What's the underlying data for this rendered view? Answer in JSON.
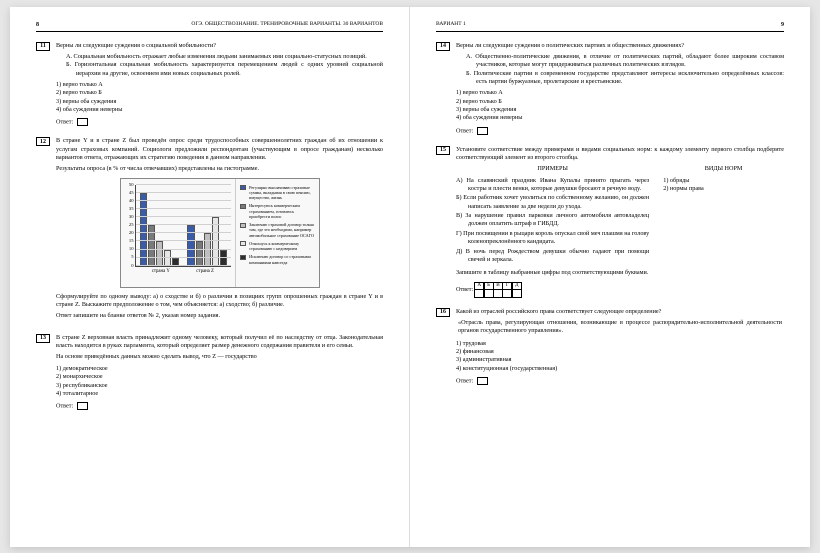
{
  "left": {
    "page_num": "8",
    "header_title": "ОГЭ. ОБЩЕСТВОЗНАНИЕ. ТРЕНИРОВОЧНЫЕ ВАРИАНТЫ. 30 ВАРИАНТОВ",
    "q11": {
      "num": "11",
      "stem": "Верны ли следующие суждения о социальной мобильности?",
      "A": "А. Социальная мобильность отражает любые изменения людьми занимаемых ими социально-статусных позиций.",
      "B": "Б. Горизонтальная социальная мобильность характеризуется перемещением людей с одних уровней социальной иерархии на другие, освоением ими новых социальных ролей.",
      "opts": [
        "1) верно только А",
        "2) верно только Б",
        "3) верны оба суждения",
        "4) оба суждения неверны"
      ],
      "answer_label": "Ответ:"
    },
    "q12": {
      "num": "12",
      "p1": "В стране Y и в стране Z был проведён опрос среди трудоспособных совершеннолетних граждан об их отношении к услугам страховых компаний. Социологи предложили респондентам (участвующим в опросе гражданам) несколько вариантов ответа, отражающих их стратегию поведения в данном направлении.",
      "p2": "Результаты опроса (в % от числа отвечавших) представлены на гистограмме.",
      "chart": {
        "ymax": 50,
        "ystep": 5,
        "categories": [
          "страна Y",
          "страна Z"
        ],
        "series": [
          {
            "label": "Регулярно выплачиваю страховые суммы, вкладывая в свою пенсию, имущество, жизнь",
            "color": "#3a5ca8",
            "vals": [
              45,
              25
            ]
          },
          {
            "label": "Интересуюсь коммерческим страхованием, готовлюсь приобрести полис",
            "color": "#7a7a7a",
            "vals": [
              25,
              15
            ]
          },
          {
            "label": "Заключаю страховой договор только там, где это необходимо, например автомобильное страхование ОСАГО",
            "color": "#bfbfbf",
            "vals": [
              15,
              20
            ]
          },
          {
            "label": "Отношусь к коммерческому страхованию с недоверием",
            "color": "#e6e6e6",
            "vals": [
              10,
              30
            ]
          },
          {
            "label": "Исключаю договор со страховыми компаниями навсегда",
            "color": "#2d2d2d",
            "vals": [
              5,
              10
            ]
          }
        ]
      },
      "p3": "Сформулируйте по одному выводу: а) о сходстве и б) о различии в позициях групп опрошенных граждан в стране Y и в стране Z. Выскажите предположение о том, чем объясняется: а) сходство; б) различие.",
      "p4": "Ответ запишите на бланке ответов № 2, указав номер задания."
    },
    "q13": {
      "num": "13",
      "stem": "В стране Z верховная власть принадлежит одному человеку, который получил её по наследству от отца. Законодательная власть находится в руках парламента, который определяет размер денежного содержания правителя и его семьи.",
      "stem2": "На основе приведённых данных можно сделать вывод, что Z — государство",
      "opts": [
        "1) демократическое",
        "2) монархическое",
        "3) республиканское",
        "4) тоталитарное"
      ],
      "answer_label": "Ответ:"
    }
  },
  "right": {
    "page_num": "9",
    "header_title": "ВАРИАНТ 1",
    "q14": {
      "num": "14",
      "stem": "Верны ли следующие суждения о политических партиях и общественных движениях?",
      "A": "А. Общественно-политические движения, в отличие от политических партий, обладают более широким составом участников, которые могут придерживаться различных политических взглядов.",
      "B": "Б. Политические партии в современном государстве представляют интересы исключительно определённых классов: есть партии буржуазные, пролетарские и крестьянские.",
      "opts": [
        "1) верно только А",
        "2) верно только Б",
        "3) верны оба суждения",
        "4) оба суждения неверны"
      ],
      "answer_label": "Ответ:"
    },
    "q15": {
      "num": "15",
      "stem": "Установите соответствие между примерами и видами социальных норм: к каждому элементу первого столбца подберите соответствующий элемент из второго столбца.",
      "left_header": "ПРИМЕРЫ",
      "right_header": "ВИДЫ НОРМ",
      "examples": [
        "А) На славянский праздник Ивана Купалы принято прыгать через костры и плести венки, которые девушки бросают в речную воду.",
        "Б) Если работник хочет уволиться по собственному желанию, он должен написать заявление за две недели до ухода.",
        "В) За нарушение правил парковки личного автомобиля автовладелец должен оплатить штраф в ГИБДД.",
        "Г) При посвящении в рыцари король опускал свой меч плашмя на голову коленопреклонённого кандидата.",
        "Д) В ночь перед Рождеством девушки обычно гадают при помощи свечей и зеркала."
      ],
      "types": [
        "1) обряды",
        "2) нормы права"
      ],
      "instruct": "Запишите в таблицу выбранные цифры под соответствующими буквами.",
      "table_headers": [
        "А",
        "Б",
        "В",
        "Г",
        "Д"
      ],
      "answer_label": "Ответ:"
    },
    "q16": {
      "num": "16",
      "stem": "Какой из отраслей российского права соответствует следующее определение?",
      "quote": "«Отрасль права, регулирующая отношения, возникающие в процессе распорядительно-исполнительной деятельности органов государственного управления».",
      "opts": [
        "1) трудовая",
        "2) финансовая",
        "3) административная",
        "4) конституционная (государственная)"
      ],
      "answer_label": "Ответ:"
    }
  }
}
